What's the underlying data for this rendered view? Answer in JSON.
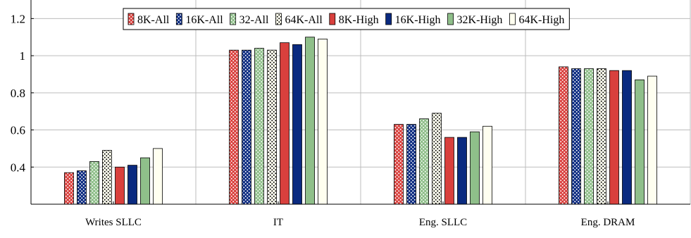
{
  "chart_data": {
    "type": "bar",
    "categories": [
      "Writes SLLC",
      "IT",
      "Eng. SLLC",
      "Eng. DRAM"
    ],
    "series": [
      {
        "name": "8K-All",
        "values": [
          0.37,
          1.03,
          0.63,
          0.94
        ],
        "color": "#d9403d",
        "pattern": "dots"
      },
      {
        "name": "16K-All",
        "values": [
          0.38,
          1.03,
          0.63,
          0.93
        ],
        "color": "#0a2a80",
        "pattern": "dots"
      },
      {
        "name": "32-All",
        "values": [
          0.43,
          1.04,
          0.66,
          0.93
        ],
        "color": "#8fbf8a",
        "pattern": "dots"
      },
      {
        "name": "64K-All",
        "values": [
          0.49,
          1.03,
          0.69,
          0.93
        ],
        "color": "#fffff0",
        "pattern": "dots"
      },
      {
        "name": "8K-High",
        "values": [
          0.4,
          1.07,
          0.56,
          0.92
        ],
        "color": "#d9403d",
        "pattern": "solid"
      },
      {
        "name": "16K-High",
        "values": [
          0.41,
          1.06,
          0.56,
          0.92
        ],
        "color": "#0a2a80",
        "pattern": "solid"
      },
      {
        "name": "32K-High",
        "values": [
          0.45,
          1.1,
          0.59,
          0.87
        ],
        "color": "#8fbf8a",
        "pattern": "solid"
      },
      {
        "name": "64K-High",
        "values": [
          0.5,
          1.09,
          0.62,
          0.89
        ],
        "color": "#fffff0",
        "pattern": "solid"
      }
    ],
    "yticks": [
      "0.4",
      "0.6",
      "0.8",
      "1",
      "1.2"
    ],
    "ylim": [
      0.2,
      1.3
    ],
    "grid": true,
    "legend_position": "top-center",
    "xlabel": "",
    "ylabel": "",
    "title": ""
  }
}
